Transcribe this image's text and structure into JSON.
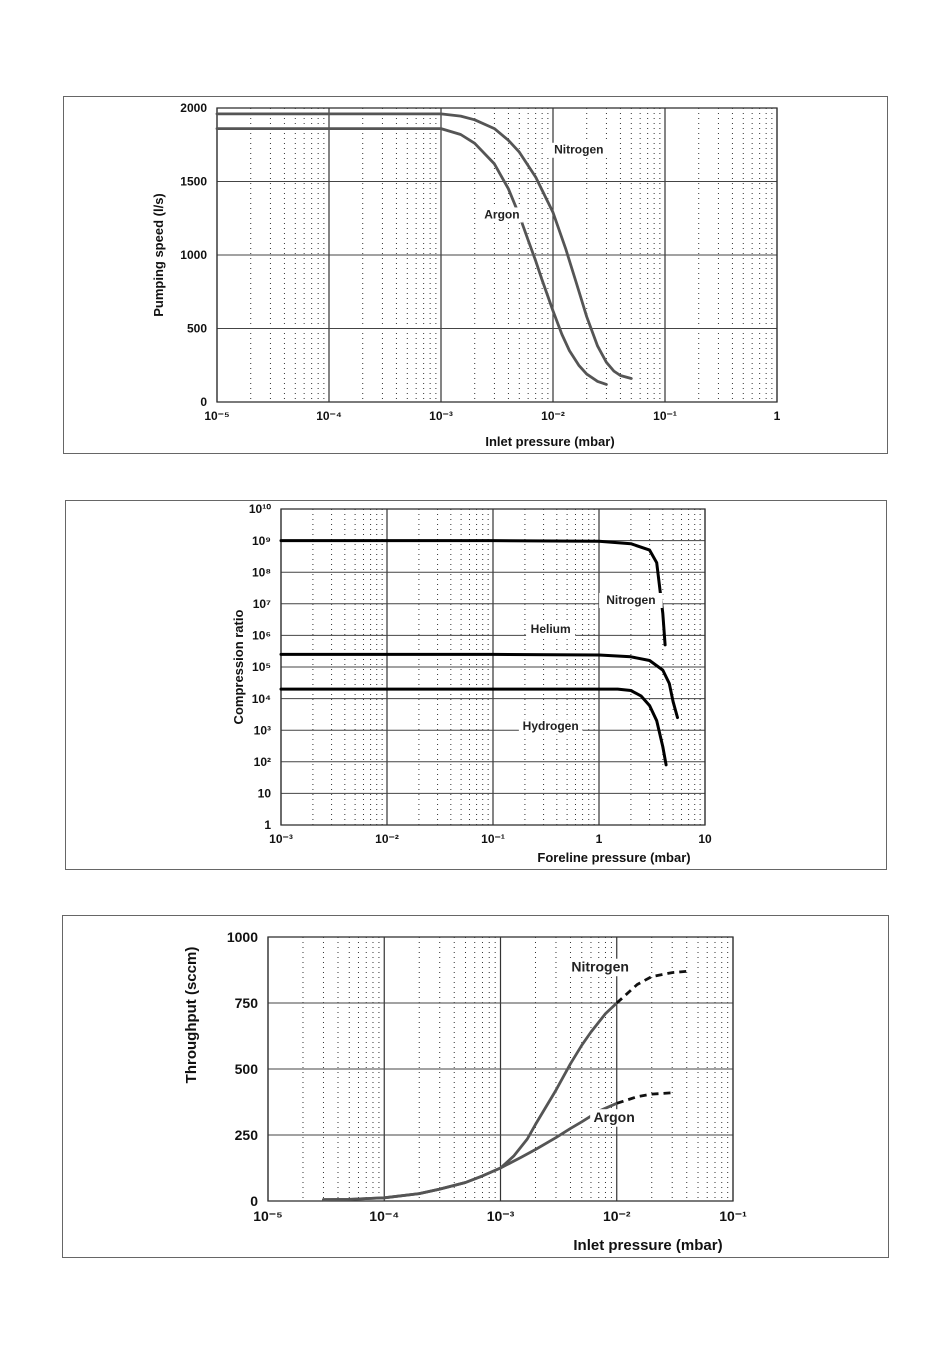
{
  "chart_data": [
    {
      "type": "line",
      "xscale": "log",
      "xlim": [
        1e-05,
        1
      ],
      "ylim": [
        0,
        2000
      ],
      "xticks": [
        1e-05,
        0.0001,
        0.001,
        0.01,
        0.1,
        1
      ],
      "yticks": [
        0,
        500,
        1000,
        1500,
        2000
      ],
      "xlabel": "Inlet pressure (mbar)",
      "ylabel": "Pumping speed (l/s)",
      "grid": true,
      "series": [
        {
          "name": "Nitrogen",
          "color": "#555555",
          "x": [
            1e-05,
            0.0001,
            0.001,
            0.0015,
            0.002,
            0.003,
            0.004,
            0.005,
            0.007,
            0.01,
            0.013,
            0.016,
            0.02,
            0.025,
            0.03,
            0.035,
            0.04,
            0.05
          ],
          "y": [
            1960,
            1960,
            1960,
            1945,
            1920,
            1860,
            1780,
            1700,
            1530,
            1290,
            1040,
            820,
            580,
            380,
            270,
            210,
            180,
            160
          ]
        },
        {
          "name": "Argon",
          "color": "#555555",
          "x": [
            1e-05,
            0.0001,
            0.001,
            0.0015,
            0.002,
            0.003,
            0.004,
            0.005,
            0.006,
            0.007,
            0.008,
            0.01,
            0.012,
            0.014,
            0.017,
            0.02,
            0.025,
            0.03
          ],
          "y": [
            1860,
            1860,
            1860,
            1820,
            1760,
            1620,
            1450,
            1270,
            1100,
            960,
            830,
            620,
            460,
            350,
            250,
            190,
            140,
            120
          ]
        }
      ],
      "annotations": [
        {
          "text": "Nitrogen",
          "x": 0.017,
          "y": 1690
        },
        {
          "text": "Argon",
          "x": 0.0035,
          "y": 1250
        }
      ]
    },
    {
      "type": "line",
      "xscale": "log",
      "yscale": "log",
      "xlim": [
        0.001,
        10
      ],
      "ylim": [
        1,
        10000000000
      ],
      "xticks": [
        0.001,
        0.01,
        0.1,
        1,
        10
      ],
      "yticks": [
        1,
        10,
        100,
        1000,
        10000,
        100000,
        1000000,
        10000000,
        100000000,
        1000000000,
        10000000000
      ],
      "xlabel": "Foreline pressure (mbar)",
      "ylabel": "Compression ratio",
      "grid": true,
      "series": [
        {
          "name": "Nitrogen",
          "color": "#000000",
          "x": [
            0.001,
            0.1,
            1,
            2,
            3,
            3.5,
            4,
            4.2
          ],
          "y": [
            1000000000,
            1000000000,
            950000000,
            800000000,
            500000000,
            200000000,
            5000000,
            500000
          ]
        },
        {
          "name": "Helium",
          "color": "#000000",
          "x": [
            0.001,
            0.1,
            1,
            2,
            3,
            4,
            4.6,
            5,
            5.5
          ],
          "y": [
            250000,
            250000,
            240000,
            210000,
            160000,
            80000,
            30000,
            8000,
            2500
          ]
        },
        {
          "name": "Hydrogen",
          "color": "#000000",
          "x": [
            0.001,
            0.1,
            1,
            1.5,
            2,
            2.5,
            3,
            3.5,
            4,
            4.3
          ],
          "y": [
            20000,
            20000,
            20000,
            20000,
            18000,
            12000,
            6000,
            2000,
            300,
            80
          ]
        }
      ],
      "annotations": [
        {
          "text": "Nitrogen",
          "x": 2.0,
          "y": 10000000
        },
        {
          "text": "Helium",
          "x": 0.35,
          "y": 1200000
        },
        {
          "text": "Hydrogen",
          "x": 0.35,
          "y": 1000
        }
      ]
    },
    {
      "type": "line",
      "xscale": "log",
      "xlim": [
        1e-05,
        0.1
      ],
      "ylim": [
        0,
        1000
      ],
      "xticks": [
        1e-05,
        0.0001,
        0.001,
        0.01,
        0.1
      ],
      "yticks": [
        0,
        250,
        500,
        750,
        1000
      ],
      "xlabel": "Inlet pressure (mbar)",
      "ylabel": "Throughput (sccm)",
      "grid": true,
      "series": [
        {
          "name": "Nitrogen",
          "color": "#555555",
          "x": [
            3e-05,
            5e-05,
            0.0001,
            0.0002,
            0.0003,
            0.0005,
            0.0007,
            0.001,
            0.0013,
            0.0017,
            0.002,
            0.003,
            0.004,
            0.005,
            0.006,
            0.008,
            0.01
          ],
          "y": [
            5,
            6,
            12,
            28,
            45,
            70,
            95,
            125,
            170,
            235,
            290,
            420,
            520,
            590,
            640,
            710,
            750
          ],
          "dashed_x": [
            0.01,
            0.015,
            0.02,
            0.03,
            0.04
          ],
          "dashed_y": [
            750,
            820,
            850,
            865,
            870
          ]
        },
        {
          "name": "Argon",
          "color": "#555555",
          "x": [
            3e-05,
            5e-05,
            0.0001,
            0.0002,
            0.0003,
            0.0005,
            0.0007,
            0.001,
            0.0015,
            0.002,
            0.003,
            0.004,
            0.005,
            0.007,
            0.01
          ],
          "y": [
            5,
            6,
            12,
            28,
            45,
            70,
            95,
            125,
            165,
            195,
            240,
            275,
            300,
            340,
            370
          ],
          "dashed_x": [
            0.01,
            0.015,
            0.02,
            0.03
          ],
          "dashed_y": [
            370,
            395,
            405,
            410
          ]
        }
      ],
      "annotations": [
        {
          "text": "Nitrogen",
          "x": 0.0072,
          "y": 870
        },
        {
          "text": "Argon",
          "x": 0.0095,
          "y": 300
        }
      ]
    }
  ]
}
